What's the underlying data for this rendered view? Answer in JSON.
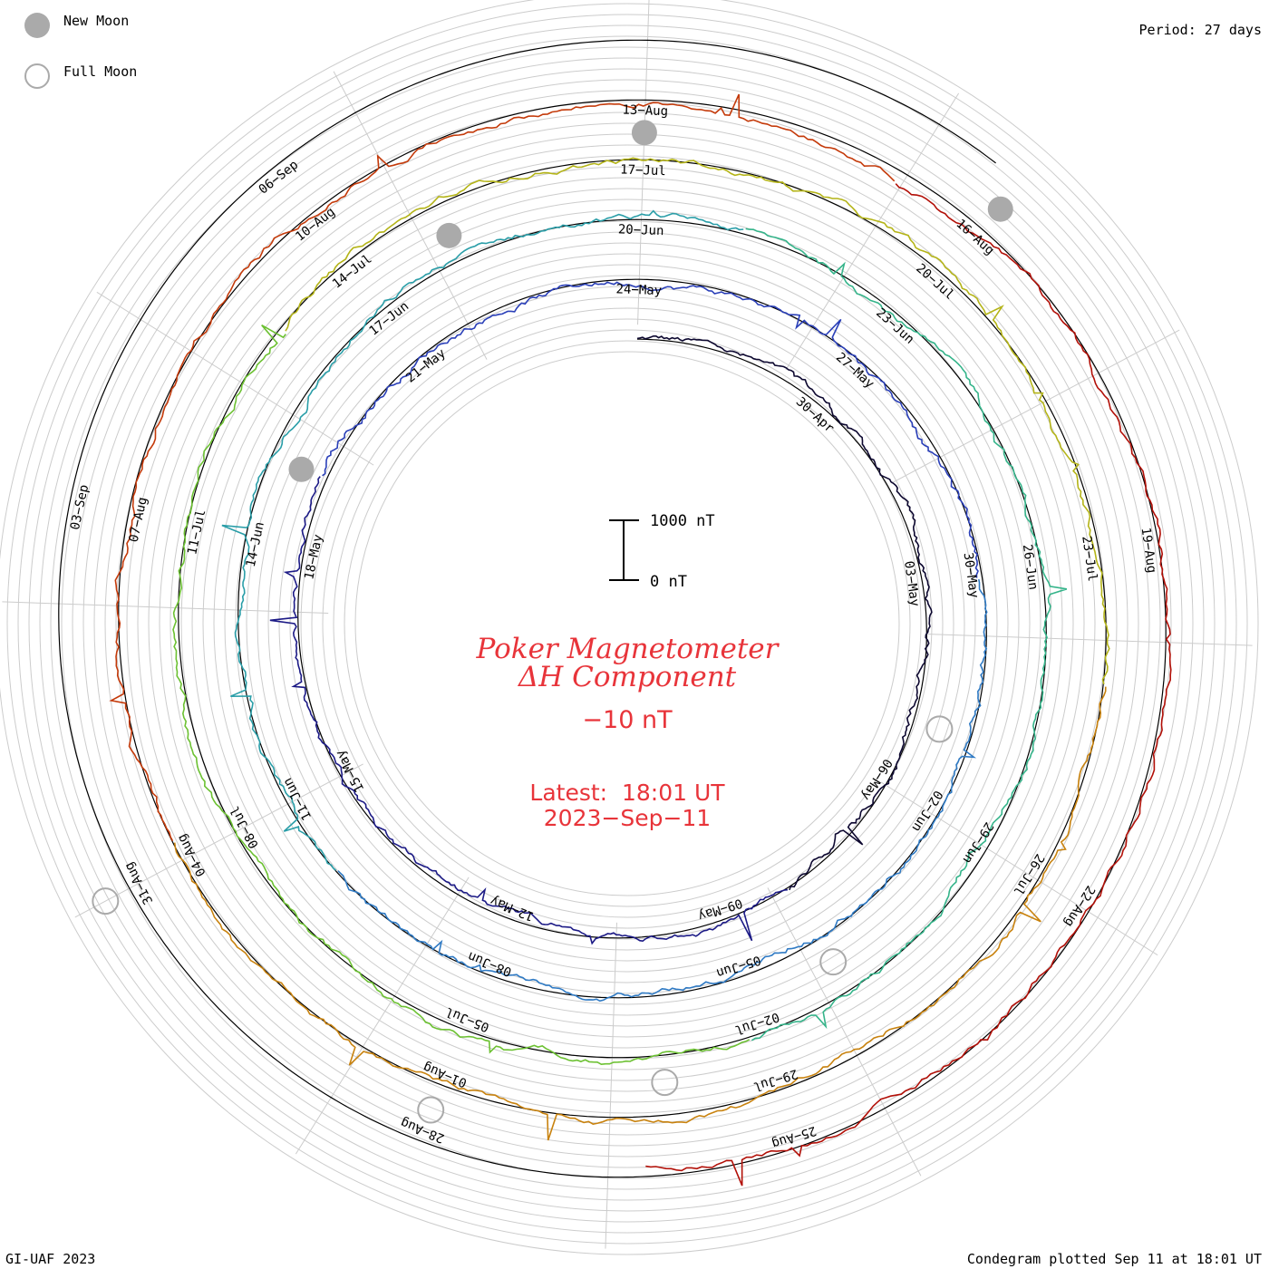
{
  "legend": {
    "new_moon_label": "New Moon",
    "full_moon_label": "Full Moon",
    "moon_color": "#aaaaaa"
  },
  "period_label": "Period: 27 days",
  "footer": {
    "left": "GI-UAF 2023",
    "right": "Condegram plotted Sep 11 at 18:01 UT"
  },
  "center": {
    "title_line1": "Poker Magnetometer",
    "title_line2": "ΔH Component",
    "baseline_value": "−10 nT",
    "latest_label": "Latest:  18:01 UT",
    "latest_date": "2023−Sep−11",
    "title_color": "#e8343a"
  },
  "scale_bar": {
    "top_label": "1000 nT",
    "bottom_label": "0 nT"
  },
  "chart_data": {
    "type": "line",
    "subtype": "spiral condegram",
    "period_days": 27,
    "start_date": "2023-04-27",
    "end_date": "2023-09-11",
    "series_colors": [
      "#0d0830",
      "#1c1a86",
      "#2a3fb8",
      "#2f7ac4",
      "#2a9ea8",
      "#35b48a",
      "#6cc132",
      "#b4b418",
      "#c8820e",
      "#c43a0a",
      "#b21008"
    ],
    "date_labels": [
      "30−Apr",
      "03−May",
      "06−May",
      "09−May",
      "12−May",
      "15−May",
      "18−May",
      "21−May",
      "24−May",
      "27−May",
      "30−May",
      "02−Jun",
      "05−Jun",
      "08−Jun",
      "11−Jun",
      "14−Jun",
      "17−Jun",
      "20−Jun",
      "23−Jun",
      "26−Jun",
      "29−Jun",
      "02−Jul",
      "05−Jul",
      "08−Jul",
      "11−Jul",
      "14−Jul",
      "17−Jul",
      "20−Jul",
      "23−Jul",
      "26−Jul",
      "29−Jul",
      "01−Aug",
      "04−Aug",
      "07−Aug",
      "10−Aug",
      "13−Aug",
      "16−Aug",
      "19−Aug",
      "22−Aug",
      "25−Aug",
      "28−Aug",
      "31−Aug",
      "03−Sep",
      "06−Sep"
    ],
    "new_moons": [
      "2023-05-19",
      "2023-06-18",
      "2023-07-17",
      "2023-08-16"
    ],
    "full_moons": [
      "2023-05-05",
      "2023-06-04",
      "2023-07-03",
      "2023-08-01",
      "2023-08-31"
    ],
    "scale_nT": [
      0,
      1000
    ]
  }
}
